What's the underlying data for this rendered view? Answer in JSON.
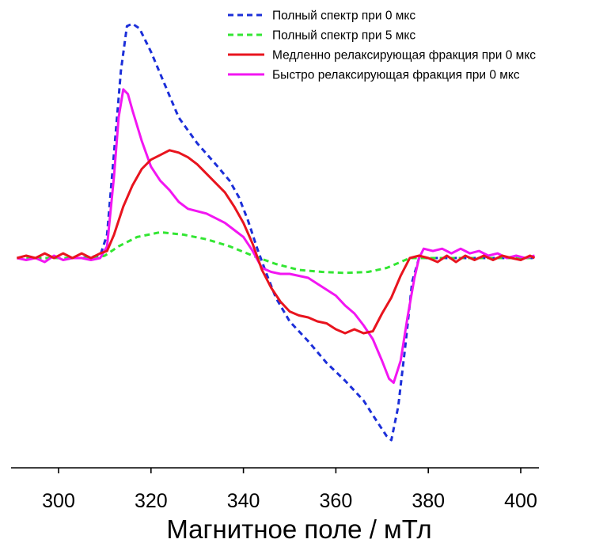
{
  "chart_data": {
    "type": "line",
    "title": "",
    "xlabel": "Магнитное поле / мТл",
    "ylabel": "",
    "xlim": [
      291,
      404
    ],
    "ylim": [
      -1.0,
      1.0
    ],
    "x_ticks": [
      "300",
      "320",
      "340",
      "360",
      "380",
      "400"
    ],
    "x_tick_values": [
      300,
      320,
      340,
      360,
      380,
      400
    ],
    "y_axis_visible": false,
    "grid": false,
    "legend_position": "top-right",
    "series": [
      {
        "name": "Полный спектр при 0 мкс",
        "color": "#1c2fd9",
        "dash": "dashed",
        "points": [
          [
            291,
            0
          ],
          [
            300,
            0
          ],
          [
            305,
            0
          ],
          [
            309,
            0.01
          ],
          [
            310.5,
            0.1
          ],
          [
            312,
            0.45
          ],
          [
            313.5,
            0.8
          ],
          [
            314.8,
            0.99
          ],
          [
            316,
            1.0
          ],
          [
            317.5,
            0.98
          ],
          [
            320,
            0.88
          ],
          [
            323,
            0.74
          ],
          [
            326,
            0.6
          ],
          [
            330,
            0.49
          ],
          [
            334,
            0.4
          ],
          [
            337,
            0.33
          ],
          [
            339,
            0.26
          ],
          [
            341,
            0.16
          ],
          [
            343,
            0.04
          ],
          [
            345,
            -0.08
          ],
          [
            347,
            -0.2
          ],
          [
            350,
            -0.32
          ],
          [
            354,
            -0.42
          ],
          [
            358,
            -0.53
          ],
          [
            362,
            -0.62
          ],
          [
            366,
            -0.72
          ],
          [
            369,
            -0.83
          ],
          [
            371,
            -0.9
          ],
          [
            372,
            -0.92
          ],
          [
            373.5,
            -0.75
          ],
          [
            375,
            -0.45
          ],
          [
            376.5,
            -0.12
          ],
          [
            378,
            0
          ],
          [
            385,
            0
          ],
          [
            395,
            0
          ],
          [
            403,
            0
          ]
        ]
      },
      {
        "name": "Полный спектр при 5 мкс",
        "color": "#33e633",
        "dash": "dashed",
        "points": [
          [
            291,
            0
          ],
          [
            300,
            0
          ],
          [
            308,
            0
          ],
          [
            310,
            0.01
          ],
          [
            313,
            0.05
          ],
          [
            317,
            0.09
          ],
          [
            322,
            0.11
          ],
          [
            327,
            0.1
          ],
          [
            332,
            0.08
          ],
          [
            337,
            0.05
          ],
          [
            342,
            0.01
          ],
          [
            347,
            -0.03
          ],
          [
            352,
            -0.06
          ],
          [
            357,
            -0.07
          ],
          [
            362,
            -0.075
          ],
          [
            367,
            -0.07
          ],
          [
            371,
            -0.05
          ],
          [
            374,
            -0.02
          ],
          [
            376,
            0
          ],
          [
            380,
            0
          ],
          [
            390,
            0
          ],
          [
            403,
            0
          ]
        ]
      },
      {
        "name": "Медленно релаксирующая фракция  при 0 мкс",
        "color": "#e8141e",
        "dash": "solid",
        "points": [
          [
            291,
            0
          ],
          [
            293,
            0.01
          ],
          [
            295,
            0
          ],
          [
            297,
            0.02
          ],
          [
            299,
            0
          ],
          [
            301,
            0.02
          ],
          [
            303,
            0
          ],
          [
            305,
            0.02
          ],
          [
            307,
            0
          ],
          [
            309,
            0.02
          ],
          [
            310.5,
            0.03
          ],
          [
            312,
            0.1
          ],
          [
            314,
            0.22
          ],
          [
            316,
            0.31
          ],
          [
            318,
            0.38
          ],
          [
            320,
            0.42
          ],
          [
            322,
            0.44
          ],
          [
            324,
            0.46
          ],
          [
            326,
            0.45
          ],
          [
            328,
            0.43
          ],
          [
            330,
            0.4
          ],
          [
            332,
            0.36
          ],
          [
            334,
            0.32
          ],
          [
            336,
            0.28
          ],
          [
            338,
            0.22
          ],
          [
            340,
            0.15
          ],
          [
            342,
            0.06
          ],
          [
            344,
            -0.06
          ],
          [
            346,
            -0.15
          ],
          [
            348,
            -0.22
          ],
          [
            350,
            -0.27
          ],
          [
            352,
            -0.29
          ],
          [
            354,
            -0.3
          ],
          [
            356,
            -0.32
          ],
          [
            358,
            -0.33
          ],
          [
            360,
            -0.36
          ],
          [
            362,
            -0.38
          ],
          [
            364,
            -0.36
          ],
          [
            366,
            -0.38
          ],
          [
            368,
            -0.37
          ],
          [
            370,
            -0.28
          ],
          [
            372,
            -0.2
          ],
          [
            374,
            -0.09
          ],
          [
            376,
            0
          ],
          [
            378,
            0.01
          ],
          [
            380,
            0
          ],
          [
            382,
            -0.02
          ],
          [
            384,
            0.01
          ],
          [
            386,
            -0.02
          ],
          [
            388,
            0.01
          ],
          [
            390,
            -0.01
          ],
          [
            392,
            0.01
          ],
          [
            394,
            -0.01
          ],
          [
            396,
            0.01
          ],
          [
            398,
            0
          ],
          [
            400,
            -0.01
          ],
          [
            402,
            0.01
          ],
          [
            403,
            0
          ]
        ]
      },
      {
        "name": "Быстро релаксирующая фракция при 0 мкс",
        "color": "#f216f2",
        "dash": "solid",
        "points": [
          [
            291,
            0
          ],
          [
            293,
            -0.01
          ],
          [
            295,
            0
          ],
          [
            297,
            -0.02
          ],
          [
            299,
            0.01
          ],
          [
            301,
            -0.01
          ],
          [
            303,
            0
          ],
          [
            305,
            0
          ],
          [
            307,
            -0.01
          ],
          [
            309,
            0
          ],
          [
            310.5,
            0.05
          ],
          [
            312,
            0.35
          ],
          [
            313,
            0.6
          ],
          [
            314,
            0.72
          ],
          [
            315,
            0.7
          ],
          [
            316,
            0.63
          ],
          [
            318,
            0.5
          ],
          [
            320,
            0.39
          ],
          [
            322,
            0.33
          ],
          [
            324,
            0.29
          ],
          [
            326,
            0.24
          ],
          [
            328,
            0.21
          ],
          [
            330,
            0.2
          ],
          [
            332,
            0.19
          ],
          [
            334,
            0.17
          ],
          [
            336,
            0.15
          ],
          [
            338,
            0.12
          ],
          [
            340,
            0.09
          ],
          [
            342,
            0.03
          ],
          [
            344,
            -0.05
          ],
          [
            346,
            -0.07
          ],
          [
            348,
            -0.08
          ],
          [
            350,
            -0.08
          ],
          [
            352,
            -0.09
          ],
          [
            354,
            -0.1
          ],
          [
            356,
            -0.13
          ],
          [
            358,
            -0.16
          ],
          [
            360,
            -0.19
          ],
          [
            362,
            -0.24
          ],
          [
            364,
            -0.28
          ],
          [
            366,
            -0.34
          ],
          [
            368,
            -0.41
          ],
          [
            370,
            -0.52
          ],
          [
            371.5,
            -0.61
          ],
          [
            372.5,
            -0.63
          ],
          [
            374,
            -0.52
          ],
          [
            375.5,
            -0.3
          ],
          [
            377,
            -0.1
          ],
          [
            378,
            0
          ],
          [
            379,
            0.04
          ],
          [
            381,
            0.03
          ],
          [
            383,
            0.04
          ],
          [
            385,
            0.02
          ],
          [
            387,
            0.04
          ],
          [
            389,
            0.02
          ],
          [
            391,
            0.03
          ],
          [
            393,
            0.01
          ],
          [
            395,
            0.02
          ],
          [
            397,
            0
          ],
          [
            399,
            0.01
          ],
          [
            401,
            0
          ],
          [
            403,
            0.01
          ]
        ]
      }
    ]
  }
}
